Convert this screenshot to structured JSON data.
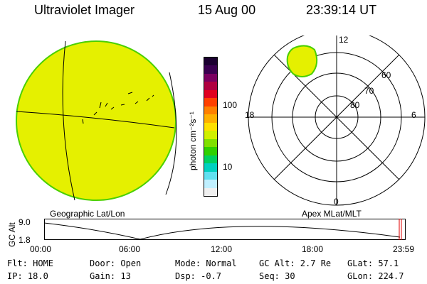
{
  "header": {
    "title": "Ultraviolet Imager",
    "date": "15 Aug 00",
    "time": "23:39:14 UT"
  },
  "colorbar": {
    "label": "photon cm⁻²s⁻¹",
    "ticks": [
      "100",
      "10"
    ],
    "colors": [
      "#1b0030",
      "#3a0050",
      "#7a0060",
      "#b00040",
      "#e00020",
      "#ff4000",
      "#ff8000",
      "#ffb000",
      "#ffe000",
      "#d0f000",
      "#80e000",
      "#30d000",
      "#00d060",
      "#00d0c0",
      "#60e0f0",
      "#c0f0ff",
      "#f0f0f0"
    ]
  },
  "geo_map": {
    "label": "Geographic Lat/Lon",
    "fill": "#e5f000",
    "rim": "#4ad000"
  },
  "polar_map": {
    "label": "Apex MLat/MLT",
    "mlt_labels": [
      "12",
      "18",
      "6",
      "0"
    ],
    "mlat_labels": [
      "60",
      "70",
      "80"
    ],
    "spot_fill": "#e5f000",
    "spot_rim": "#4ad000"
  },
  "altitude_plot": {
    "ylabel": "GC Alt",
    "yticks": [
      "9.0",
      "1.8"
    ],
    "xticks": [
      "00:00",
      "06:00",
      "12:00",
      "18:00",
      "23:59"
    ],
    "marker_color": "#e00000",
    "marker_time_fraction": 0.985
  },
  "status": {
    "row1": {
      "flt": "Flt: HOME",
      "door": "Door: Open",
      "mode": "Mode: Normal",
      "gcalt": "GC Alt: 2.7 Re",
      "glat": "GLat:  57.1"
    },
    "row2": {
      "ip": "IP: 18.0",
      "gain": "Gain: 13",
      "dsp": "Dsp:   -0.7",
      "seq": "Seq: 30",
      "glon": "GLon: 224.7"
    }
  }
}
